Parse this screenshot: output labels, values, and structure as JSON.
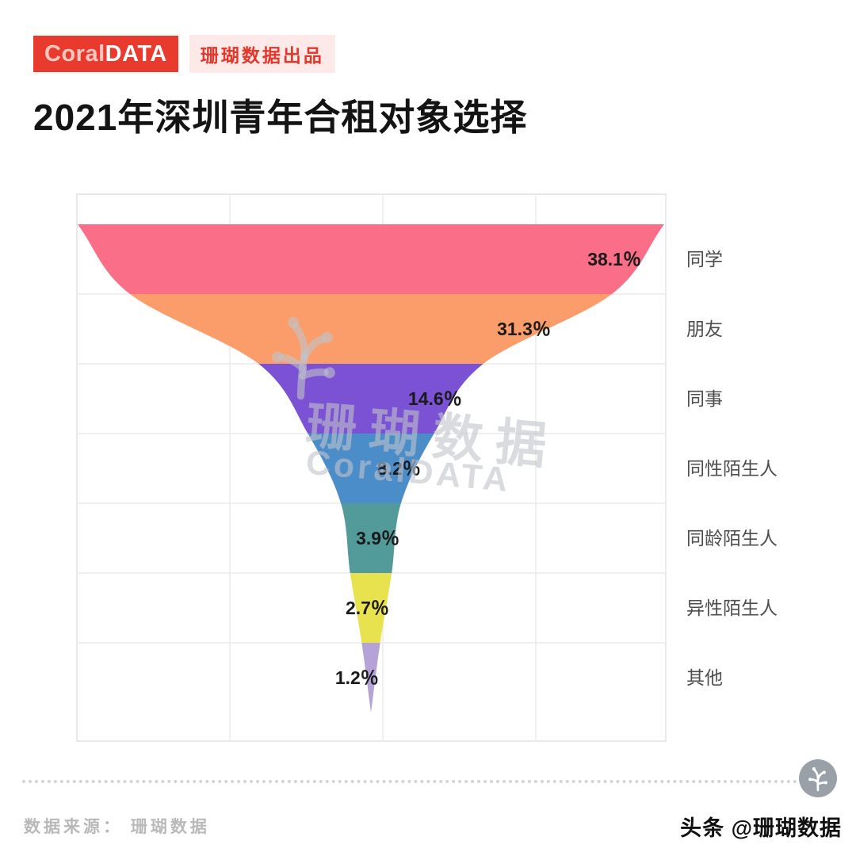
{
  "header": {
    "logo_coral": "Coral",
    "logo_data": "DATA",
    "publisher_badge": "珊瑚数据出品"
  },
  "title": "2021年深圳青年合租对象选择",
  "chart_data": {
    "type": "funnel",
    "title": "2021年深圳青年合租对象选择",
    "categories": [
      "同学",
      "朋友",
      "同事",
      "同性陌生人",
      "同龄陌生人",
      "异性陌生人",
      "其他"
    ],
    "values": [
      38.1,
      31.3,
      14.6,
      8.2,
      3.9,
      2.7,
      1.2
    ],
    "value_labels": [
      "38.1％",
      "31.3％",
      "14.6％",
      "8.2％",
      "3.9％",
      "2.7％",
      "1.2％"
    ],
    "colors": [
      "#fa6e87",
      "#fb9d6a",
      "#7b52d3",
      "#4b8dc9",
      "#539a9b",
      "#e8e24e",
      "#b5a3d8"
    ],
    "sort": "descending",
    "grid": true,
    "label_position": "right",
    "xlabel": "",
    "ylabel": ""
  },
  "watermark": {
    "line1": "珊瑚数据",
    "line2": "CoralDATA"
  },
  "footer": {
    "source": "数据来源： 珊瑚数据",
    "credit": "头条 @珊瑚数据"
  },
  "style": {
    "accent_red": "#e93a2e",
    "grid_color": "#ebebeb",
    "plot_border": "#e2e2e2",
    "value_label_color": "#1a1a1a",
    "category_label_color": "#4d4d4d"
  }
}
